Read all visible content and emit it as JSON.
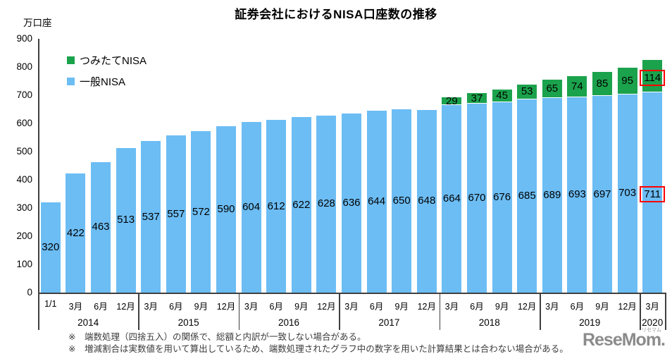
{
  "chart_data": {
    "type": "bar",
    "stacked": true,
    "title": "証券会社におけるNISA口座数の推移",
    "y_unit_label": "万口座",
    "ylim": [
      0,
      900
    ],
    "yticks": [
      0,
      100,
      200,
      300,
      400,
      500,
      600,
      700,
      800,
      900
    ],
    "grid": false,
    "legend_position": "top-left",
    "legend": [
      {
        "name": "tsumitate-nisa",
        "label": "つみたてNISA",
        "color": "#1ba24c"
      },
      {
        "name": "ippan-nisa",
        "label": "一般NISA",
        "color": "#6cbdf4"
      }
    ],
    "groups": [
      {
        "year": "2014",
        "points": [
          {
            "x": "1/1",
            "ippan": 320
          },
          {
            "x": "3月",
            "ippan": 422
          },
          {
            "x": "6月",
            "ippan": 463
          },
          {
            "x": "12月",
            "ippan": 513
          }
        ]
      },
      {
        "year": "2015",
        "points": [
          {
            "x": "3月",
            "ippan": 537
          },
          {
            "x": "6月",
            "ippan": 557
          },
          {
            "x": "9月",
            "ippan": 572
          },
          {
            "x": "12月",
            "ippan": 590
          }
        ]
      },
      {
        "year": "2016",
        "points": [
          {
            "x": "3月",
            "ippan": 604
          },
          {
            "x": "6月",
            "ippan": 612
          },
          {
            "x": "9月",
            "ippan": 622
          },
          {
            "x": "12月",
            "ippan": 628
          }
        ]
      },
      {
        "year": "2017",
        "points": [
          {
            "x": "3月",
            "ippan": 636
          },
          {
            "x": "6月",
            "ippan": 644
          },
          {
            "x": "9月",
            "ippan": 650
          },
          {
            "x": "12月",
            "ippan": 648
          }
        ]
      },
      {
        "year": "2018",
        "points": [
          {
            "x": "3月",
            "ippan": 664,
            "tsumitate": 29
          },
          {
            "x": "6月",
            "ippan": 670,
            "tsumitate": 37
          },
          {
            "x": "9月",
            "ippan": 676,
            "tsumitate": 45
          },
          {
            "x": "12月",
            "ippan": 685,
            "tsumitate": 53
          }
        ]
      },
      {
        "year": "2019",
        "points": [
          {
            "x": "3月",
            "ippan": 689,
            "tsumitate": 65
          },
          {
            "x": "6月",
            "ippan": 693,
            "tsumitate": 74
          },
          {
            "x": "9月",
            "ippan": 697,
            "tsumitate": 85
          },
          {
            "x": "12月",
            "ippan": 703,
            "tsumitate": 95
          }
        ]
      },
      {
        "year": "2020",
        "points": [
          {
            "x": "3月",
            "ippan": 711,
            "tsumitate": 114,
            "highlight": true
          }
        ]
      }
    ],
    "highlight_color": "#ff0000",
    "axis_color": "#3f3f3f",
    "footnotes": [
      "※　端数処理（四捨五入）の関係で、総額と内訳が一致しない場合がある。",
      "※　増減割合は実数値を用いて算出しているため、端数処理されたグラフ中の数字を用いた計算結果とは合わない場合がある。"
    ]
  },
  "watermark": {
    "text": "ReseMom.",
    "ruby": "リセマム"
  }
}
